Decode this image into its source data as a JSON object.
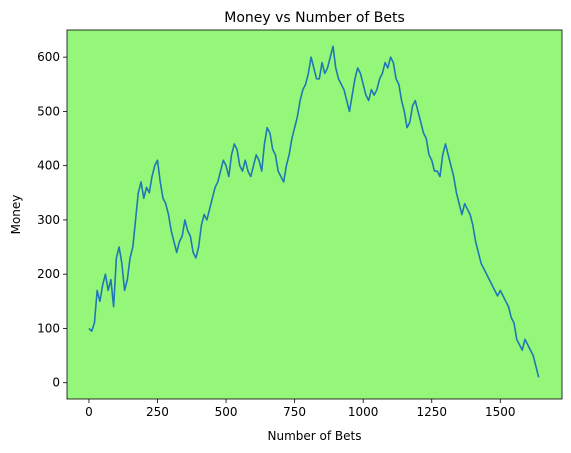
{
  "chart_data": {
    "type": "line",
    "title": "Money vs Number of Bets",
    "xlabel": "Number of Bets",
    "ylabel": "Money",
    "xlim": [
      -80,
      1725
    ],
    "ylim": [
      -30,
      650
    ],
    "xticks": [
      0,
      250,
      500,
      750,
      1000,
      1250,
      1500
    ],
    "yticks": [
      0,
      100,
      200,
      300,
      400,
      500,
      600
    ],
    "background_color": "#95f77a",
    "line_color": "#1f77b4",
    "grid": false,
    "legend": "none",
    "series": [
      {
        "x": [
          0,
          10,
          20,
          30,
          40,
          50,
          60,
          70,
          80,
          90,
          100,
          110,
          120,
          130,
          140,
          150,
          160,
          170,
          180,
          190,
          200,
          210,
          220,
          230,
          240,
          250,
          260,
          270,
          280,
          290,
          300,
          310,
          320,
          330,
          340,
          350,
          360,
          370,
          380,
          390,
          400,
          410,
          420,
          430,
          440,
          450,
          460,
          470,
          480,
          490,
          500,
          510,
          520,
          530,
          540,
          550,
          560,
          570,
          580,
          590,
          600,
          610,
          620,
          630,
          640,
          650,
          660,
          670,
          680,
          690,
          700,
          710,
          720,
          730,
          740,
          750,
          760,
          770,
          780,
          790,
          800,
          810,
          820,
          830,
          840,
          850,
          860,
          870,
          880,
          890,
          900,
          910,
          920,
          930,
          940,
          950,
          960,
          970,
          980,
          990,
          1000,
          1010,
          1020,
          1030,
          1040,
          1050,
          1060,
          1070,
          1080,
          1090,
          1100,
          1110,
          1120,
          1130,
          1140,
          1150,
          1160,
          1170,
          1180,
          1190,
          1200,
          1210,
          1220,
          1230,
          1240,
          1250,
          1260,
          1270,
          1280,
          1290,
          1300,
          1310,
          1320,
          1330,
          1340,
          1350,
          1360,
          1370,
          1380,
          1390,
          1400,
          1410,
          1420,
          1430,
          1440,
          1450,
          1460,
          1470,
          1480,
          1490,
          1500,
          1510,
          1520,
          1530,
          1540,
          1550,
          1560,
          1570,
          1580,
          1590,
          1600,
          1610,
          1620,
          1630,
          1640
        ],
        "y": [
          100,
          95,
          110,
          170,
          150,
          180,
          200,
          170,
          190,
          140,
          230,
          250,
          220,
          170,
          190,
          230,
          250,
          300,
          350,
          370,
          340,
          360,
          350,
          380,
          400,
          410,
          370,
          340,
          330,
          310,
          280,
          260,
          240,
          260,
          270,
          300,
          280,
          270,
          240,
          230,
          250,
          290,
          310,
          300,
          320,
          340,
          360,
          370,
          390,
          410,
          400,
          380,
          420,
          440,
          430,
          400,
          390,
          410,
          390,
          380,
          400,
          420,
          410,
          390,
          440,
          470,
          460,
          430,
          420,
          390,
          380,
          370,
          400,
          420,
          450,
          470,
          490,
          520,
          540,
          550,
          570,
          600,
          580,
          560,
          560,
          590,
          570,
          580,
          600,
          620,
          580,
          560,
          550,
          540,
          520,
          500,
          530,
          560,
          580,
          570,
          550,
          530,
          520,
          540,
          530,
          540,
          560,
          570,
          590,
          580,
          600,
          590,
          560,
          550,
          520,
          500,
          470,
          480,
          510,
          520,
          500,
          480,
          460,
          450,
          420,
          410,
          390,
          390,
          380,
          420,
          440,
          420,
          400,
          380,
          350,
          330,
          310,
          330,
          320,
          310,
          290,
          260,
          240,
          220,
          210,
          200,
          190,
          180,
          170,
          160,
          170,
          160,
          150,
          140,
          120,
          110,
          80,
          70,
          60,
          80,
          70,
          60,
          50,
          30,
          10
        ]
      }
    ]
  }
}
